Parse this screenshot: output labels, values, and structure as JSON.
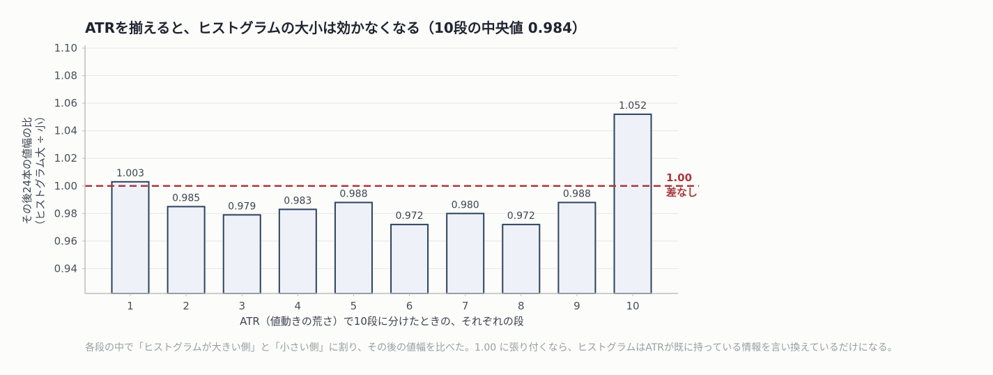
{
  "chart_data": {
    "type": "bar",
    "title": "ATRを揃えると、ヒストグラムの大小は効かなくなる（10段の中央値 0.984）",
    "xlabel": "ATR（値動きの荒さ）で10段に分けたときの、それぞれの段",
    "ylabel_line1": "その後24本の値幅の比",
    "ylabel_line2": "（ヒストグラム大 ÷ 小）",
    "categories": [
      "1",
      "2",
      "3",
      "4",
      "5",
      "6",
      "7",
      "8",
      "9",
      "10"
    ],
    "values": [
      1.003,
      0.985,
      0.979,
      0.983,
      0.988,
      0.972,
      0.98,
      0.972,
      0.988,
      1.052
    ],
    "value_labels": [
      "1.003",
      "0.985",
      "0.979",
      "0.983",
      "0.988",
      "0.972",
      "0.980",
      "0.972",
      "0.988",
      "1.052"
    ],
    "ylim": [
      0.922,
      1.1
    ],
    "yticks": [
      "0.94",
      "0.96",
      "0.98",
      "1.00",
      "1.02",
      "1.04",
      "1.06",
      "1.08",
      "1.10"
    ],
    "ytick_values": [
      0.94,
      0.96,
      0.98,
      1.0,
      1.02,
      1.04,
      1.06,
      1.08,
      1.1
    ],
    "reference_line": {
      "value": 1.0,
      "label_value": "1.00",
      "label_text": "差なし"
    },
    "grid": true
  },
  "caption": "各段の中で「ヒストグラムが大きい側」と「小さい側」に割り、その後の値幅を比べた。1.00 に張り付くなら、ヒストグラムはATRが既に持っている情報を言い換えているだけになる。",
  "colors": {
    "bar_fill": "#eef2f8",
    "bar_stroke": "#2c4260",
    "reference": "#a8383d",
    "grid": "#e6e6e3",
    "background": "#fcfcfa"
  }
}
